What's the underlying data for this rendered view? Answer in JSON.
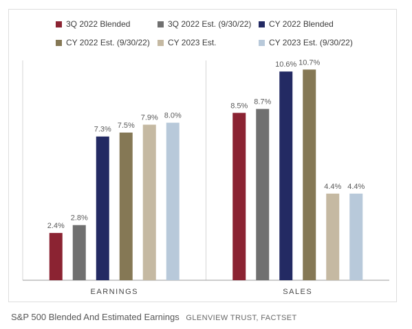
{
  "chart_data": {
    "type": "bar",
    "categories": [
      "EARNINGS",
      "SALES"
    ],
    "series": [
      {
        "name": "3Q 2022 Blended",
        "color": "#8b2332",
        "values": [
          2.4,
          8.5
        ],
        "labels": [
          "2.4%",
          "8.5%"
        ]
      },
      {
        "name": "3Q 2022 Est. (9/30/22)",
        "color": "#707070",
        "values": [
          2.8,
          8.7
        ],
        "labels": [
          "2.8%",
          "8.7%"
        ]
      },
      {
        "name": "CY 2022 Blended",
        "color": "#232a63",
        "values": [
          7.3,
          10.6
        ],
        "labels": [
          "7.3%",
          "10.6%"
        ]
      },
      {
        "name": "CY 2022 Est. (9/30/22)",
        "color": "#857855",
        "values": [
          7.5,
          10.7
        ],
        "labels": [
          "7.5%",
          "10.7%"
        ]
      },
      {
        "name": "CY 2023 Est.",
        "color": "#c5b9a2",
        "values": [
          7.9,
          4.4
        ],
        "labels": [
          "7.9%",
          "4.4%"
        ]
      },
      {
        "name": "CY 2023 Est. (9/30/22)",
        "color": "#b8c9da",
        "values": [
          8.0,
          4.4
        ],
        "labels": [
          "8.0%",
          "4.4%"
        ]
      }
    ],
    "ylim": [
      0,
      11.5
    ],
    "grid": false,
    "legend": "top"
  },
  "caption": {
    "title": "S&P 500 Blended And Estimated Earnings",
    "credit": "GLENVIEW TRUST, FACTSET"
  }
}
